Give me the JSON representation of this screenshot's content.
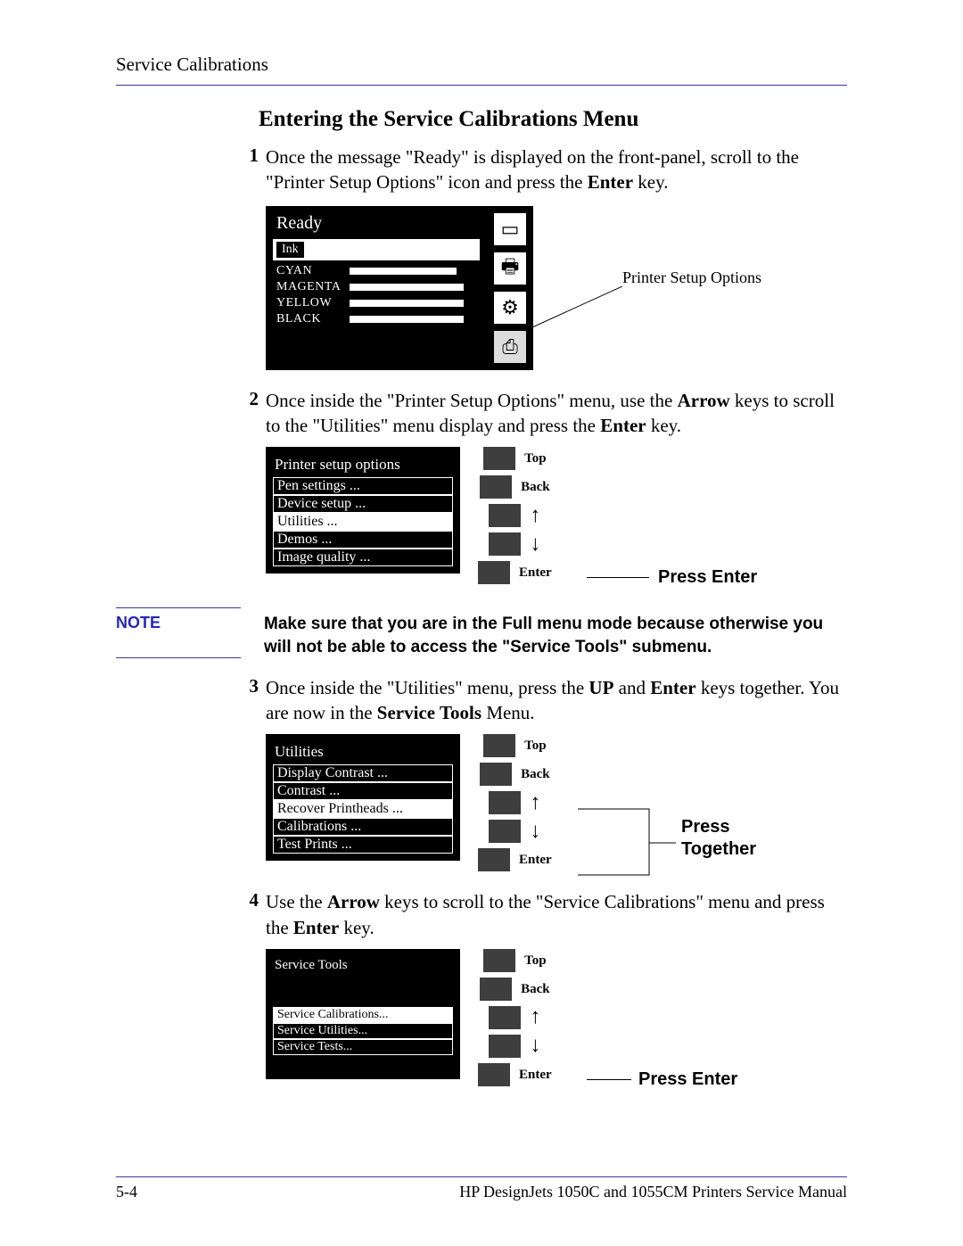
{
  "header": "Service Calibrations",
  "title": "Entering the Service Calibrations Menu",
  "steps": {
    "s1_num": "1",
    "s1_a": "Once the message \"Ready\" is displayed on the front-panel, scroll to the \"Printer Setup Options\" icon and press the ",
    "s1_key": "Enter",
    "s1_b": " key.",
    "s2_num": "2",
    "s2_a": "Once inside the \"Printer Setup Options\" menu, use the ",
    "s2_key1": "Arrow",
    "s2_b": " keys to scroll to the \"Utilities\" menu display and press the ",
    "s2_key2": "Enter",
    "s2_c": " key.",
    "s3_num": "3",
    "s3_a": "Once inside the \"Utilities\" menu, press the ",
    "s3_key1": "UP",
    "s3_b": " and ",
    "s3_key2": "Enter",
    "s3_c": " keys together. You are now in the ",
    "s3_key3": "Service Tools",
    "s3_d": " Menu.",
    "s4_num": "4",
    "s4_a": "Use the ",
    "s4_key1": "Arrow",
    "s4_b": " keys to scroll to the \"Service Calibrations\" menu and press the ",
    "s4_key2": "Enter",
    "s4_c": " key."
  },
  "note": {
    "label": "NOTE",
    "text": "Make sure that you are in the Full menu mode because otherwise you will not be able to access the \"Service Tools\" submenu."
  },
  "panel1": {
    "title": "Ready",
    "ink_tag": "Ink",
    "inks": [
      {
        "label": "CYAN",
        "bar": 120
      },
      {
        "label": "MAGENTA",
        "bar": 128
      },
      {
        "label": "YELLOW",
        "bar": 128
      },
      {
        "label": "BLACK",
        "bar": 128
      }
    ],
    "callout": "Printer Setup Options",
    "icons": [
      "▭",
      "🖶",
      "⚙",
      "⎙"
    ]
  },
  "panel2": {
    "title": "Printer setup options",
    "items": [
      {
        "label": "Pen settings ...",
        "sel": false
      },
      {
        "label": "Device setup ...",
        "sel": false
      },
      {
        "label": "Utilities ...",
        "sel": true
      },
      {
        "label": "Demos ...",
        "sel": false
      },
      {
        "label": "Image quality ...",
        "sel": false
      }
    ],
    "press": "Press Enter"
  },
  "panel3": {
    "title": "Utilities",
    "items": [
      {
        "label": "Display Contrast ...",
        "sel": false
      },
      {
        "label": "Contrast ...",
        "sel": false
      },
      {
        "label": "Recover Printheads ...",
        "sel": true
      },
      {
        "label": "Calibrations ...",
        "sel": false
      },
      {
        "label": "Test Prints ...",
        "sel": false
      }
    ],
    "press1": "Press",
    "press2": "Together"
  },
  "panel4": {
    "title": "Service Tools",
    "items": [
      {
        "label": "Service Calibrations...",
        "sel": true
      },
      {
        "label": "Service Utilities...",
        "sel": false
      },
      {
        "label": "Service Tests...",
        "sel": false
      }
    ],
    "press": "Press Enter"
  },
  "buttons": {
    "top": "Top",
    "back": "Back",
    "enter": "Enter",
    "up": "↑",
    "down": "↓"
  },
  "footer": {
    "page": "5-4",
    "manual": "HP DesignJets 1050C and 1055CM Printers Service Manual"
  }
}
